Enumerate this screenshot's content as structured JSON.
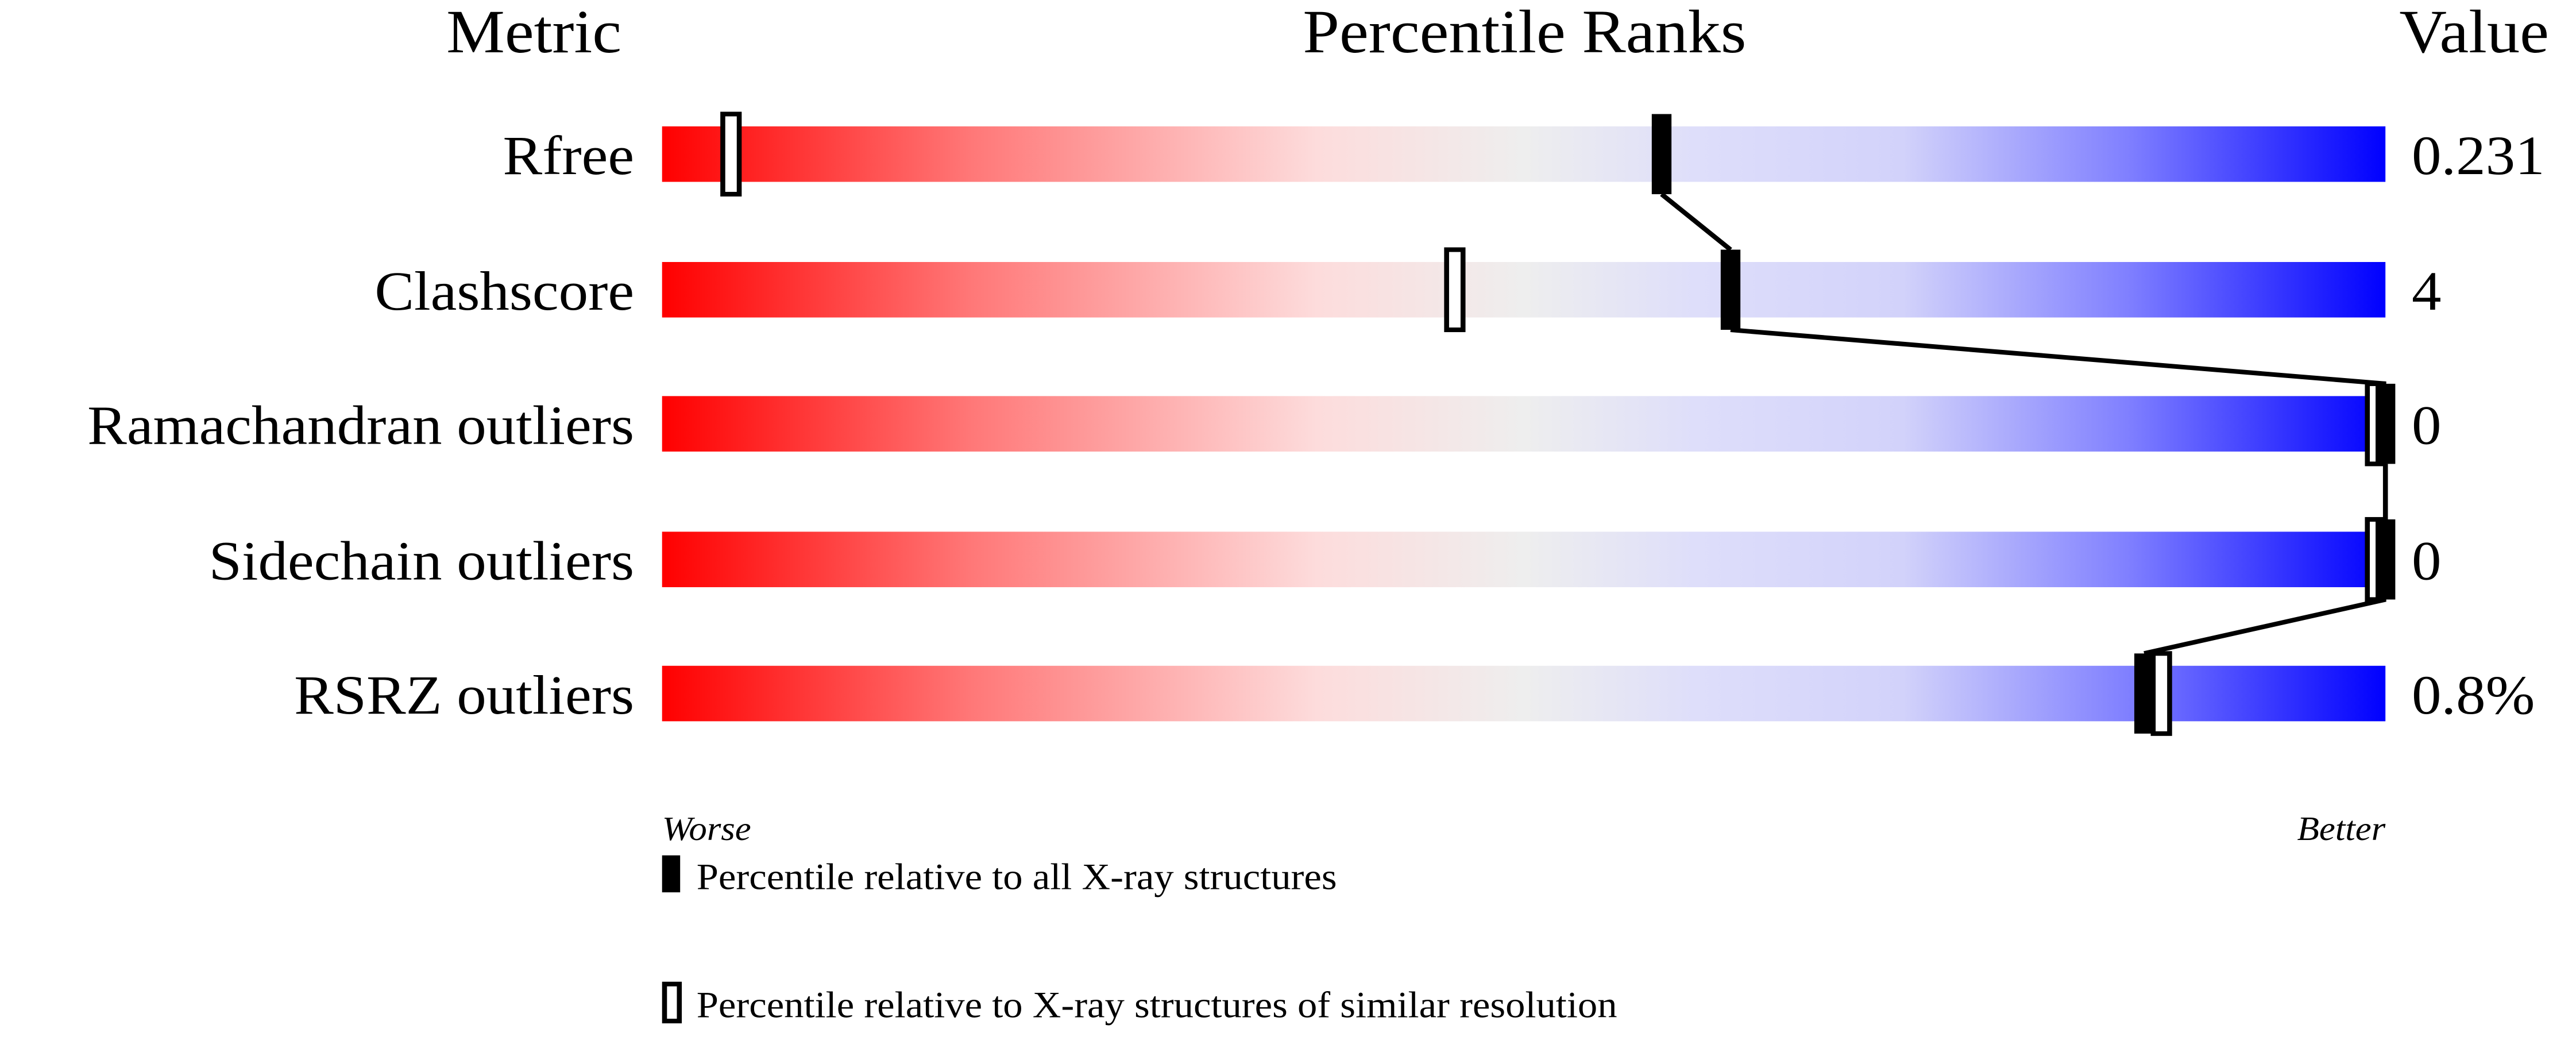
{
  "headers": {
    "metric": "Metric",
    "percentile": "Percentile Ranks",
    "value": "Value"
  },
  "colors": {
    "worse": "#ff0000",
    "mid": "#eeeeee",
    "light_blue": "#dcdcfa",
    "better": "#0000ff",
    "marker": "#000000"
  },
  "chart_data": {
    "type": "percentile-slider",
    "xlim": [
      0,
      100
    ],
    "metrics": [
      {
        "label": "Rfree",
        "value": "0.231",
        "percentile_all": 58,
        "percentile_similar": 4
      },
      {
        "label": "Clashscore",
        "value": "4",
        "percentile_all": 62,
        "percentile_similar": 46
      },
      {
        "label": "Ramachandran outliers",
        "value": "0",
        "percentile_all": 100,
        "percentile_similar": 100
      },
      {
        "label": "Sidechain outliers",
        "value": "0",
        "percentile_all": 100,
        "percentile_similar": 100
      },
      {
        "label": "RSRZ outliers",
        "value": "0.8%",
        "percentile_all": 86,
        "percentile_similar": 87
      }
    ],
    "axis_left": "Worse",
    "axis_right": "Better",
    "legend": [
      {
        "marker": "filled",
        "label": "Percentile relative to all X-ray structures"
      },
      {
        "marker": "open",
        "label": "Percentile relative to X-ray structures of similar resolution"
      }
    ]
  }
}
